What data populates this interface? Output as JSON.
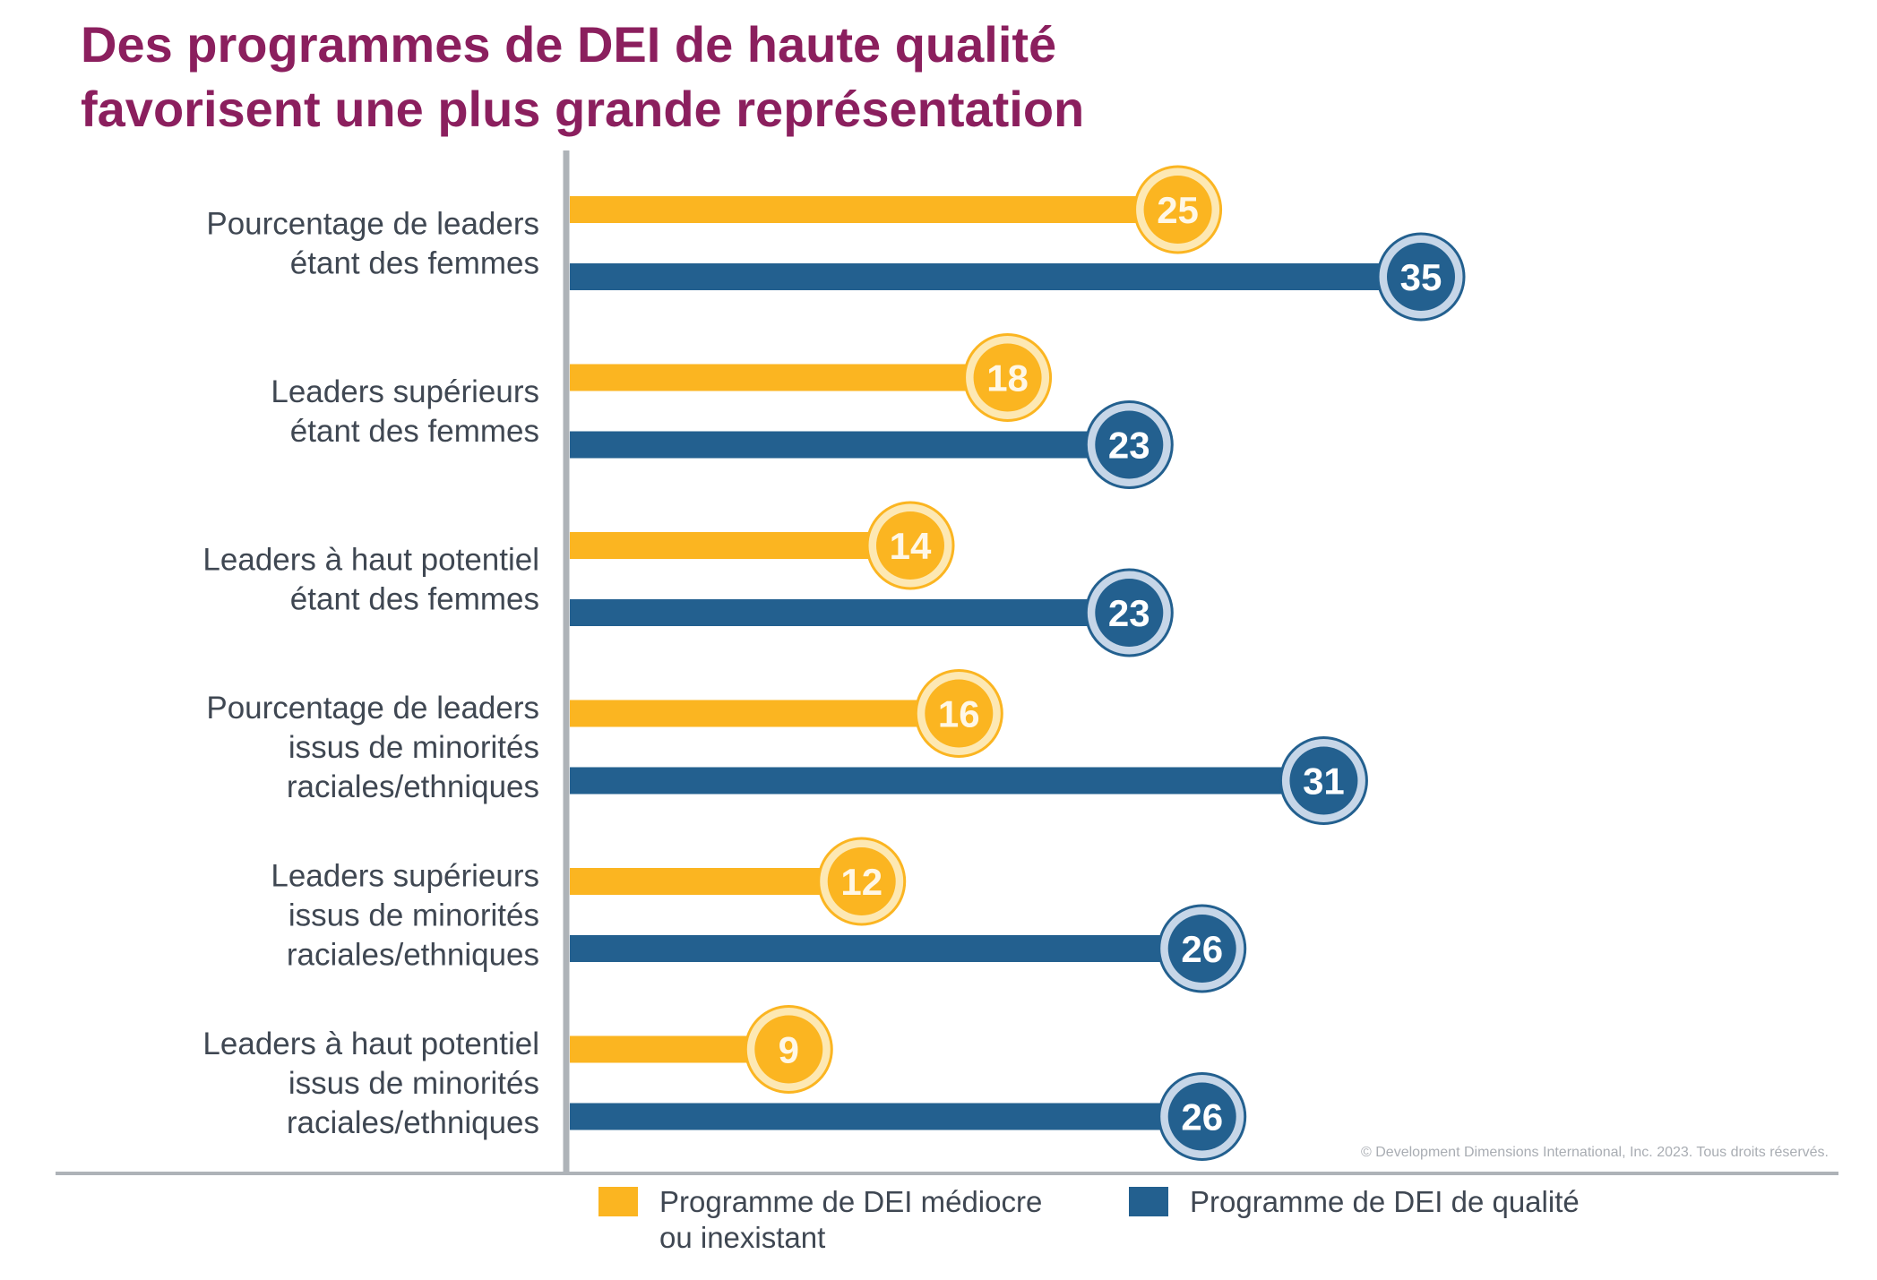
{
  "title_lines": [
    "Des programmes de DEI de haute qualité",
    "favorisent une plus grande représentation"
  ],
  "copyright": "© Development Dimensions International, Inc. 2023. Tous droits réservés.",
  "colors": {
    "title": "#8b1f5e",
    "poor": "#fbb521",
    "poor_halo": "#fde8b3",
    "quality": "#23608f",
    "quality_halo": "#c6d6e8",
    "axis": "#aeb3b8",
    "text": "#3f4752"
  },
  "legend": [
    {
      "label": "Programme de DEI médiocre ou inexistant",
      "color": "#fbb521"
    },
    {
      "label": "Programme de DEI de qualité",
      "color": "#23608f"
    }
  ],
  "chart_data": {
    "type": "bar",
    "orientation": "horizontal",
    "categories": [
      [
        "Pourcentage de leaders",
        "étant des femmes"
      ],
      [
        "Leaders supérieurs",
        "étant des femmes"
      ],
      [
        "Leaders à haut potentiel",
        "étant des femmes"
      ],
      [
        "Pourcentage de leaders",
        "issus de minorités",
        "raciales/ethniques"
      ],
      [
        "Leaders supérieurs",
        "issus de minorités",
        "raciales/ethniques"
      ],
      [
        "Leaders à haut potentiel",
        "issus de minorités",
        "raciales/ethniques"
      ]
    ],
    "series": [
      {
        "name": "Programme de DEI médiocre ou inexistant",
        "values": [
          25,
          18,
          14,
          16,
          12,
          9
        ]
      },
      {
        "name": "Programme de DEI de qualité",
        "values": [
          35,
          23,
          23,
          31,
          26,
          26
        ]
      }
    ],
    "xlim": [
      0,
      35
    ],
    "grid": false,
    "legend_position": "bottom"
  }
}
